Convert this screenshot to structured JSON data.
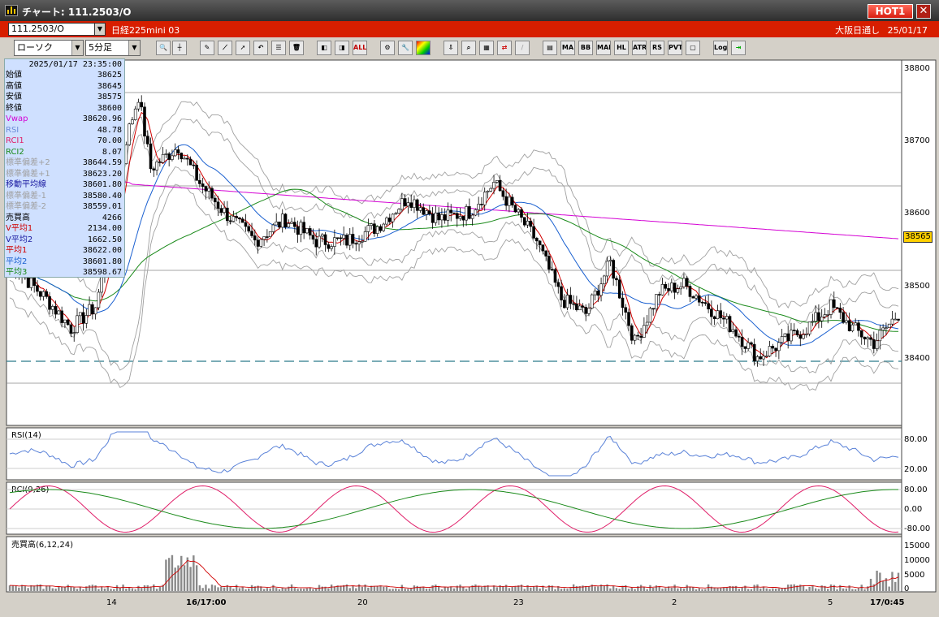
{
  "window": {
    "title": "チャート: 111.2503/O",
    "hot_label": "HOT1",
    "close_glyph": "✕"
  },
  "infobar": {
    "symbol": "111.2503/O",
    "instrument_name": "日経225mini 03",
    "market": "大阪日通し",
    "date": "25/01/17"
  },
  "toolbar": {
    "chart_type": "ローソク",
    "interval": "5分足",
    "text_buttons": [
      "ALL",
      "MA",
      "BB",
      "MAE",
      "HL",
      "ATR",
      "RS",
      "PVT",
      "Log"
    ]
  },
  "databox": {
    "timestamp": "2025/01/17  23:35:00",
    "rows": [
      {
        "label": "始値",
        "value": "38625",
        "color": "#000000"
      },
      {
        "label": "高値",
        "value": "38645",
        "color": "#000000"
      },
      {
        "label": "安値",
        "value": "38575",
        "color": "#000000"
      },
      {
        "label": "終値",
        "value": "38600",
        "color": "#000000"
      },
      {
        "label": "Vwap",
        "value": "38620.96",
        "color": "#d400d4"
      },
      {
        "label": "RSI",
        "value": "48.78",
        "color": "#6a8ad8"
      },
      {
        "label": "RCI1",
        "value": "70.00",
        "color": "#e0206a"
      },
      {
        "label": "RCI2",
        "value": "8.07",
        "color": "#1a8a1a"
      },
      {
        "label": "標準偏差+2",
        "value": "38644.59",
        "color": "#a0a0a0"
      },
      {
        "label": "標準偏差+1",
        "value": "38623.20",
        "color": "#a0a0a0"
      },
      {
        "label": "移動平均線",
        "value": "38601.80",
        "color": "#1a1aa0"
      },
      {
        "label": "標準偏差-1",
        "value": "38580.40",
        "color": "#a0a0a0"
      },
      {
        "label": "標準偏差-2",
        "value": "38559.01",
        "color": "#a0a0a0"
      },
      {
        "label": "売買高",
        "value": "4266",
        "color": "#000000"
      },
      {
        "label": "V平均1",
        "value": "2134.00",
        "color": "#d00000"
      },
      {
        "label": "V平均2",
        "value": "1662.50",
        "color": "#1a1aa0"
      },
      {
        "label": "平均1",
        "value": "38622.00",
        "color": "#d00000"
      },
      {
        "label": "平均2",
        "value": "38601.80",
        "color": "#1a60d0"
      },
      {
        "label": "平均3",
        "value": "38598.67",
        "color": "#1a8a1a"
      }
    ]
  },
  "price_axis": {
    "labels": [
      "38800",
      "38700",
      "38600",
      "38500",
      "38400"
    ],
    "current_price": "38565"
  },
  "panels": {
    "rsi_label": "RSI(14)",
    "rsi_ticks": [
      "80.00",
      "20.00"
    ],
    "rci_label": "RCI(9,26)",
    "rci_ticks": [
      "80.00",
      "0.00",
      "-80.00"
    ],
    "vol_label": "売買高(6,12,24)",
    "vol_ticks": [
      "15000",
      "10000",
      "5000",
      "0"
    ]
  },
  "x_axis": {
    "labels": [
      "14",
      "16/17:00",
      "20",
      "23",
      "2",
      "5",
      "17/0:45"
    ]
  },
  "colors": {
    "candle_up": "#ffffff",
    "candle_down": "#000000",
    "vwap": "#d400d4",
    "ma_short": "#d00000",
    "ma_mid": "#1a60d0",
    "ma_long": "#1a8a1a",
    "bands": "#a0a0a0",
    "rsi": "#5a82d8",
    "rci1": "#e0206a",
    "rci2": "#1a8a1a",
    "dashed_level": "#2a7a8a"
  }
}
